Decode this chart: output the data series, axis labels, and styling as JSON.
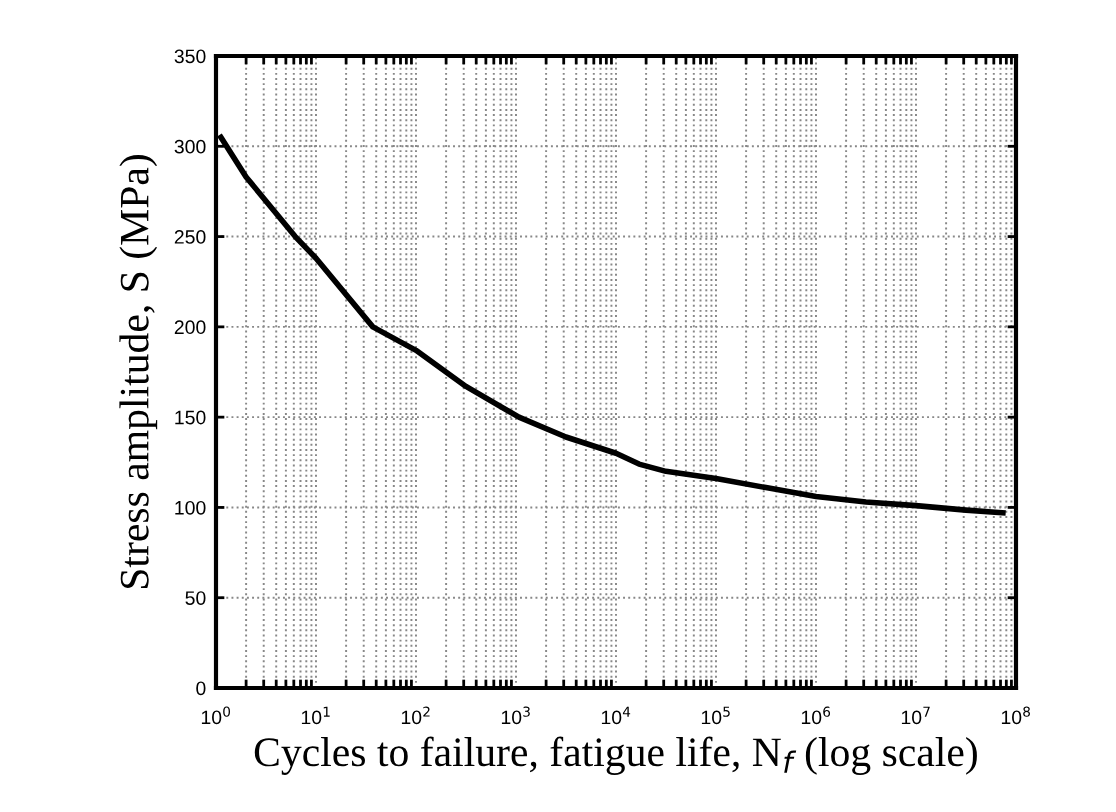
{
  "chart_data": {
    "type": "line",
    "xlabel": "Cycles to failure, fatigue life, N$_{f}$ (log scale)",
    "ylabel": "Stress amplitude, S (MPa)",
    "x": [
      1.12,
      2,
      6.2,
      10,
      37,
      100,
      316,
      1070,
      3160,
      10000,
      17000,
      31600,
      100000,
      316000,
      1000000,
      3160000,
      10000000,
      31600000,
      74000000
    ],
    "series": [
      {
        "color": "#000000",
        "values": [
          305,
          283,
          250,
          238,
          200,
          187,
          167,
          150,
          139,
          130,
          124,
          120,
          116,
          111,
          106,
          103,
          101,
          98.5,
          97
        ]
      }
    ],
    "log": "x",
    "xlim": [
      1,
      100000000
    ],
    "xticks": [
      {
        "value": 1,
        "label": "10$^{0}$"
      },
      {
        "value": 10,
        "label": "10$^{1}$"
      },
      {
        "value": 100,
        "label": "10$^{2}$"
      },
      {
        "value": 1000,
        "label": "10$^{3}$"
      },
      {
        "value": 10000,
        "label": "10$^{4}$"
      },
      {
        "value": 100000,
        "label": "10$^{5}$"
      },
      {
        "value": 1000000,
        "label": "10$^{6}$"
      },
      {
        "value": 10000000,
        "label": "10$^{7}$"
      },
      {
        "value": 100000000,
        "label": "10$^{8}$"
      }
    ],
    "ylim": [
      0,
      350
    ],
    "yticks": [
      0,
      50,
      100,
      150,
      200,
      250,
      300,
      350
    ],
    "grid": true,
    "marker": "none",
    "line_style": "solid"
  }
}
